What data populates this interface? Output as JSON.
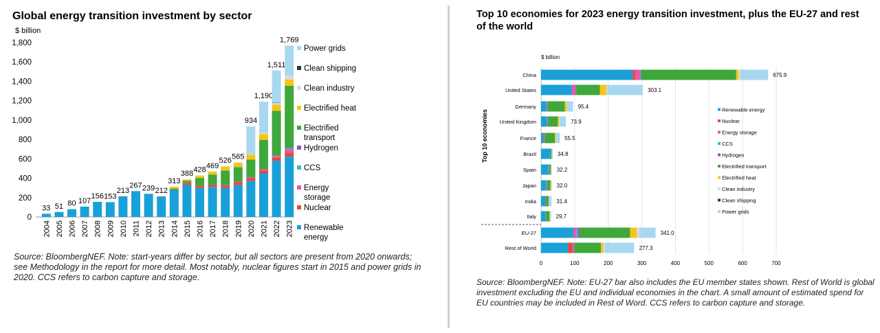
{
  "left": {
    "title": "Global energy transition investment by sector",
    "source": "Source: BloombergNEF. Note: start-years differ by sector, but all sectors are present from 2020 onwards; see Methodology in the report for more detail. Most notably, nuclear figures start in 2015 and power grids in 2020. CCS refers to carbon capture and storage."
  },
  "right": {
    "title": "Top 10 economies for 2023 energy transition investment, plus the EU-27 and rest of the world",
    "source": "Source: BloombergNEF. Note: EU-27 bar also includes the EU member states shown. Rest of World is global investment excluding the EU and individual economies in the chart. A small amount of estimated spend for EU countries may be included in Rest of Word. CCS refers to carbon capture and storage."
  },
  "chart_data": [
    {
      "type": "bar",
      "stacked": true,
      "orientation": "vertical",
      "title": "Global energy transition investment by sector",
      "ylabel": "$ billion",
      "ylim": [
        0,
        1800
      ],
      "yticks": [
        0,
        200,
        400,
        600,
        800,
        1000,
        1200,
        1400,
        1600,
        1800
      ],
      "ytick_labels": [
        "0",
        "200",
        "400",
        "600",
        "800",
        "1,000",
        "1,200",
        "1,400",
        "1,600",
        "1,800"
      ],
      "legend_position": "right",
      "categories": [
        "2004",
        "2005",
        "2006",
        "2007",
        "2008",
        "2009",
        "2010",
        "2011",
        "2012",
        "2013",
        "2014",
        "2015",
        "2016",
        "2017",
        "2018",
        "2019",
        "2020",
        "2021",
        "2022",
        "2023"
      ],
      "totals": [
        33,
        51,
        80,
        107,
        156,
        153,
        213,
        267,
        239,
        212,
        313,
        388,
        428,
        469,
        526,
        565,
        934,
        1190,
        1511,
        1769
      ],
      "total_labels": [
        "33",
        "51",
        "80",
        "107",
        "156",
        "153",
        "213",
        "267",
        "239",
        "212",
        "313",
        "388",
        "428",
        "469",
        "526",
        "565",
        "934",
        "1,190",
        "1,511",
        "1,769"
      ],
      "series": [
        {
          "name": "Renewable energy",
          "color": "#1aa0d8",
          "values": [
            33,
            51,
            80,
            107,
            156,
            153,
            213,
            267,
            239,
            212,
            280,
            330,
            300,
            310,
            300,
            330,
            370,
            450,
            580,
            623
          ]
        },
        {
          "name": "Nuclear",
          "color": "#e8473b",
          "values": [
            0,
            0,
            0,
            0,
            0,
            0,
            0,
            0,
            0,
            0,
            0,
            20,
            20,
            20,
            25,
            30,
            30,
            30,
            30,
            40
          ]
        },
        {
          "name": "Energy storage",
          "color": "#e35aa6",
          "values": [
            0,
            0,
            0,
            0,
            0,
            0,
            0,
            0,
            0,
            0,
            0,
            2,
            3,
            3,
            5,
            5,
            8,
            12,
            18,
            36
          ]
        },
        {
          "name": "CCS",
          "color": "#23c4b6",
          "values": [
            0,
            0,
            0,
            0,
            0,
            0,
            0,
            0,
            0,
            0,
            0,
            0,
            0,
            0,
            0,
            0,
            3,
            3,
            5,
            11
          ]
        },
        {
          "name": "Hydrogen",
          "color": "#8e55b8",
          "values": [
            0,
            0,
            0,
            0,
            0,
            0,
            0,
            0,
            0,
            0,
            0,
            0,
            0,
            0,
            0,
            0,
            1,
            1,
            2,
            10
          ]
        },
        {
          "name": "Electrified transport",
          "color": "#3ea83a",
          "values": [
            0,
            0,
            0,
            0,
            0,
            0,
            0,
            0,
            0,
            0,
            13,
            22,
            80,
            105,
            150,
            150,
            180,
            300,
            460,
            634
          ]
        },
        {
          "name": "Electrified heat",
          "color": "#f5c518",
          "values": [
            0,
            0,
            0,
            0,
            0,
            0,
            0,
            0,
            0,
            0,
            20,
            14,
            25,
            31,
            40,
            42,
            50,
            60,
            65,
            65
          ]
        },
        {
          "name": "Clean industry",
          "color": "#d9d9d9",
          "values": [
            0,
            0,
            0,
            0,
            0,
            0,
            0,
            0,
            0,
            0,
            0,
            0,
            0,
            0,
            6,
            8,
            10,
            15,
            20,
            40
          ]
        },
        {
          "name": "Clean shipping",
          "color": "#333333",
          "values": [
            0,
            0,
            0,
            0,
            0,
            0,
            0,
            0,
            0,
            0,
            0,
            0,
            0,
            0,
            0,
            0,
            0,
            0,
            1,
            0
          ]
        },
        {
          "name": "Power grids",
          "color": "#a8d8f0",
          "values": [
            0,
            0,
            0,
            0,
            0,
            0,
            0,
            0,
            0,
            0,
            0,
            0,
            0,
            0,
            0,
            0,
            282,
            319,
            331,
            310
          ]
        }
      ],
      "legend_labels": [
        "Power grids",
        "Clean shipping",
        "Clean industry",
        "Electrified heat",
        "Electrified\ntransport",
        "Hydrogen",
        "CCS",
        "Energy\nstorage",
        "Nuclear",
        "Renewable\nenergy"
      ]
    },
    {
      "type": "bar",
      "stacked": true,
      "orientation": "horizontal",
      "title": "Top 10 economies for 2023 energy transition investment, plus the EU-27 and rest of the world",
      "xlabel": "$ billion",
      "ylabel": "Top 10 economies",
      "xlim": [
        0,
        700
      ],
      "xticks": [
        0,
        100,
        200,
        300,
        400,
        500,
        600,
        700
      ],
      "legend_position": "right",
      "categories": [
        "China",
        "United States",
        "Germany",
        "United Kingdom",
        "France",
        "Brazil",
        "Spain",
        "Japan",
        "India",
        "Italy",
        "EU-27",
        "Rest of World"
      ],
      "totals": [
        675.9,
        303.1,
        95.4,
        73.9,
        55.5,
        34.8,
        32.2,
        32.0,
        31.4,
        29.7,
        341.0,
        277.3
      ],
      "total_labels": [
        "675.9",
        "303.1",
        "95.4",
        "73.9",
        "55.5",
        "34.8",
        "32.2",
        "32.0",
        "31.4",
        "29.7",
        "341.0",
        "277.3"
      ],
      "series": [
        {
          "name": "Renewable energy",
          "color": "#1aa0d8",
          "values": [
            273,
            92,
            16,
            18,
            7,
            26,
            22,
            16,
            13,
            14,
            96,
            80
          ]
        },
        {
          "name": "Nuclear",
          "color": "#e8473b",
          "values": [
            8,
            0,
            0,
            0,
            2,
            0,
            0,
            0,
            2,
            0,
            0,
            14
          ]
        },
        {
          "name": "Energy storage",
          "color": "#e35aa6",
          "values": [
            14,
            11,
            2,
            2,
            1,
            0,
            1,
            2,
            0,
            1,
            10,
            3
          ]
        },
        {
          "name": "CCS",
          "color": "#23c4b6",
          "values": [
            1,
            0,
            0,
            0,
            0,
            0,
            0,
            0,
            0,
            0,
            4,
            1
          ]
        },
        {
          "name": "Hydrogen",
          "color": "#8e55b8",
          "values": [
            2,
            2,
            1,
            0,
            1,
            0,
            1,
            0,
            0,
            0,
            5,
            2
          ]
        },
        {
          "name": "Electrified transport",
          "color": "#3ea83a",
          "values": [
            283,
            70,
            52,
            30,
            30,
            5,
            5,
            10,
            8,
            10,
            150,
            78
          ]
        },
        {
          "name": "Electrified heat",
          "color": "#f5c518",
          "values": [
            7,
            20,
            6,
            4,
            3,
            0,
            1,
            2,
            0,
            2,
            20,
            7
          ]
        },
        {
          "name": "Clean industry",
          "color": "#d9d9d9",
          "values": [
            4,
            2,
            1,
            1,
            1,
            0,
            0,
            0,
            1,
            0,
            8,
            5
          ]
        },
        {
          "name": "Clean shipping",
          "color": "#333333",
          "values": [
            0,
            0,
            0,
            0,
            0,
            0,
            0,
            0,
            0,
            0,
            0,
            0
          ]
        },
        {
          "name": "Power grids",
          "color": "#a8d8f0",
          "values": [
            84,
            106,
            17,
            19,
            11,
            4,
            2,
            2,
            7,
            3,
            48,
            87
          ]
        }
      ],
      "legend_labels": [
        "Renewable energy",
        "Nuclear",
        "Energy storage",
        "CCS",
        "Hydrogen",
        "Electrified transport",
        "Electrified heat",
        "Clean industry",
        "Clean shipping",
        "Power grids"
      ]
    }
  ]
}
